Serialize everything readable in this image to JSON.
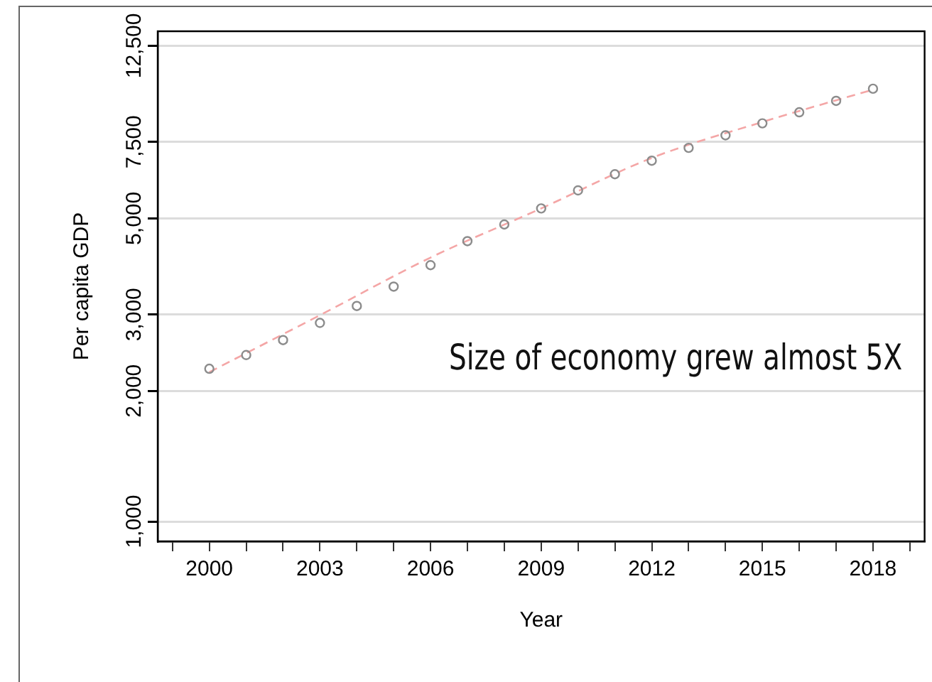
{
  "chart_data": {
    "type": "scatter",
    "xlabel": "Year",
    "ylabel": "Per capita GDP",
    "x": [
      2000,
      2001,
      2002,
      2003,
      2004,
      2005,
      2006,
      2007,
      2008,
      2009,
      2010,
      2011,
      2012,
      2013,
      2014,
      2015,
      2016,
      2017,
      2018
    ],
    "series": [
      {
        "color": "#8c8c8c",
        "marker": "circle",
        "values": [
          2250,
          2420,
          2620,
          2870,
          3140,
          3480,
          3900,
          4430,
          4840,
          5270,
          5800,
          6320,
          6790,
          7270,
          7770,
          8280,
          8780,
          9330,
          9950
        ]
      },
      {
        "type": "line",
        "color": "#f4a6a6",
        "marker": "none",
        "line_style": "dashed",
        "x": [
          2000,
          2003,
          2006,
          2009,
          2012,
          2015,
          2018
        ],
        "values": [
          2210,
          2990,
          4060,
          5270,
          6890,
          8340,
          9900
        ]
      }
    ],
    "xlim": [
      1998.6,
      2019.4
    ],
    "xticks": [
      {
        "value": 1999,
        "label": null
      },
      2000,
      {
        "value": 2001,
        "label": null
      },
      {
        "value": 2002,
        "label": null
      },
      2003,
      {
        "value": 2004,
        "label": null
      },
      {
        "value": 2005,
        "label": null
      },
      2006,
      {
        "value": 2007,
        "label": null
      },
      {
        "value": 2008,
        "label": null
      },
      2009,
      {
        "value": 2010,
        "label": null
      },
      {
        "value": 2011,
        "label": null
      },
      2012,
      {
        "value": 2013,
        "label": null
      },
      {
        "value": 2014,
        "label": null
      },
      2015,
      {
        "value": 2016,
        "label": null
      },
      {
        "value": 2017,
        "label": null
      },
      2018,
      {
        "value": 2019,
        "label": null
      }
    ],
    "ylim": [
      900,
      13500
    ],
    "yticks": [
      {
        "value": 1000,
        "label": "1,000"
      },
      {
        "value": 2000,
        "label": "2,000"
      },
      {
        "value": 3000,
        "label": "3,000"
      },
      {
        "value": 5000,
        "label": "5,000"
      },
      {
        "value": 7500,
        "label": "7,500"
      },
      {
        "value": 12500,
        "label": "12,500"
      }
    ],
    "log": "y",
    "grid": "y",
    "legend": false,
    "annotations": [
      "Size of economy grew almost 5X"
    ]
  }
}
